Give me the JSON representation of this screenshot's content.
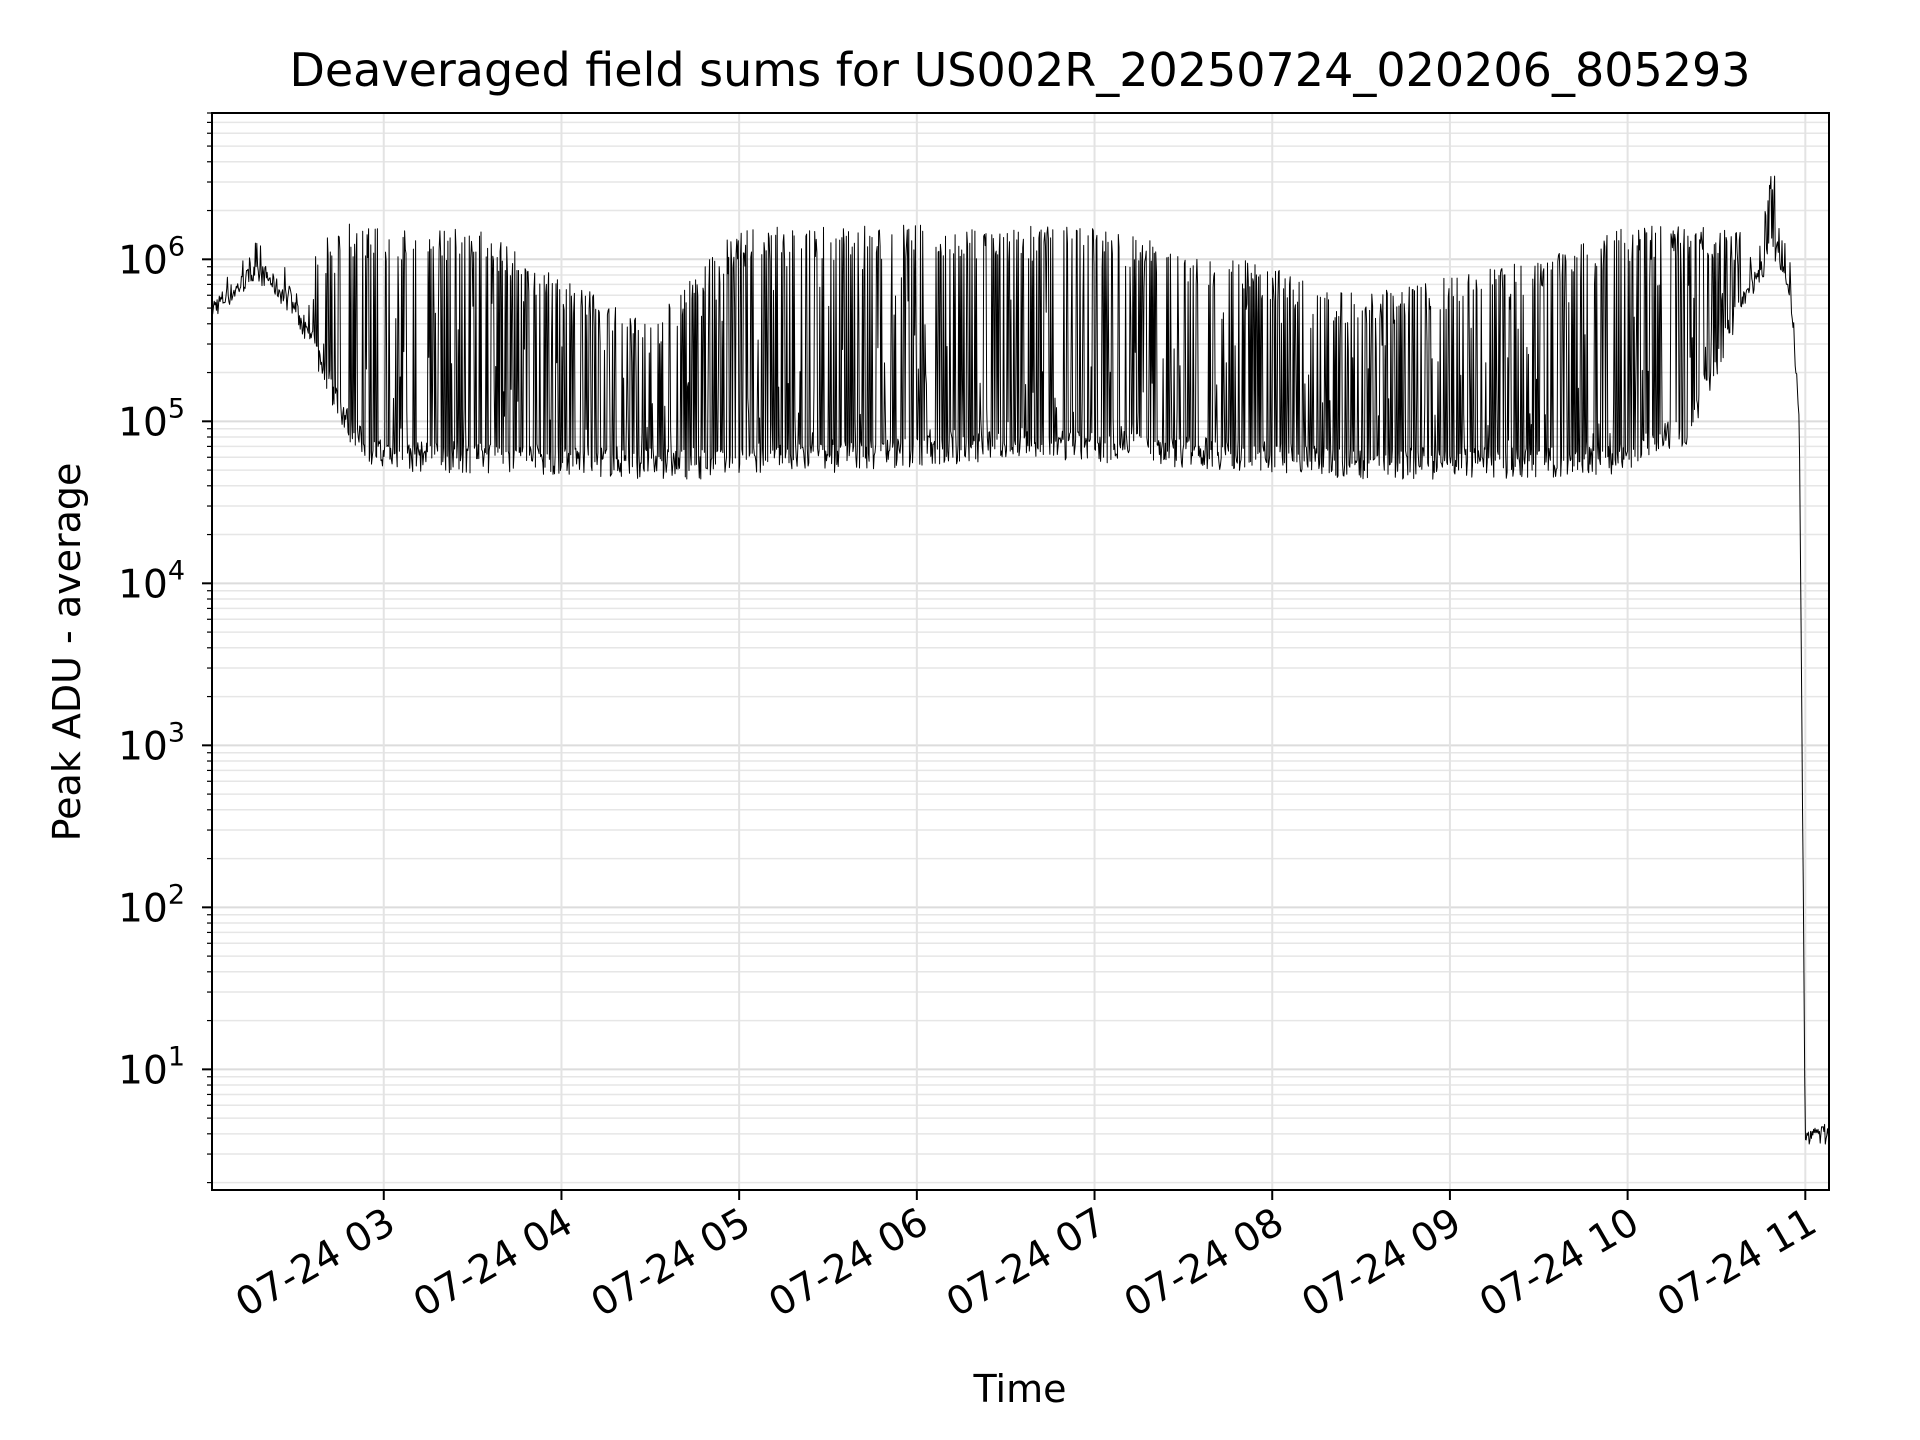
{
  "chart_data": {
    "type": "line",
    "title": "Deaveraged field sums for US002R_20250724_020206_805293",
    "xlabel": "Time",
    "ylabel": "Peak ADU - average",
    "yscale": "log",
    "grid": true,
    "xlim": [
      "07-24 02:02",
      "07-24 11:08"
    ],
    "ylim": [
      1.8,
      8000000
    ],
    "x_ticks": [
      "07-24 03",
      "07-24 04",
      "07-24 05",
      "07-24 06",
      "07-24 07",
      "07-24 08",
      "07-24 09",
      "07-24 10",
      "07-24 11"
    ],
    "y_ticks": [
      {
        "base": "10",
        "exp": "1",
        "value": 10
      },
      {
        "base": "10",
        "exp": "2",
        "value": 100
      },
      {
        "base": "10",
        "exp": "3",
        "value": 1000
      },
      {
        "base": "10",
        "exp": "4",
        "value": 10000
      },
      {
        "base": "10",
        "exp": "5",
        "value": 100000
      },
      {
        "base": "10",
        "exp": "6",
        "value": 1000000
      }
    ],
    "series": [
      {
        "color": "#000000",
        "line_width": 1,
        "points": [
          {
            "time": "07-24 02:02",
            "baseline": 500000,
            "peak": 650000
          },
          {
            "time": "07-24 02:10",
            "baseline": 650000,
            "peak": 900000
          },
          {
            "time": "07-24 02:15",
            "baseline": 800000,
            "peak": 1400000
          },
          {
            "time": "07-24 02:20",
            "baseline": 800000,
            "peak": 1300000
          },
          {
            "time": "07-24 02:30",
            "baseline": 500000,
            "peak": 700000
          },
          {
            "time": "07-24 02:40",
            "baseline": 200000,
            "peak": 1600000
          },
          {
            "time": "07-24 02:50",
            "baseline": 80000,
            "peak": 1700000
          },
          {
            "time": "07-24 03:00",
            "baseline": 60000,
            "peak": 1600000
          },
          {
            "time": "07-24 03:30",
            "baseline": 60000,
            "peak": 1600000
          },
          {
            "time": "07-24 04:00",
            "baseline": 58000,
            "peak": 800000
          },
          {
            "time": "07-24 04:30",
            "baseline": 55000,
            "peak": 400000
          },
          {
            "time": "07-24 05:00",
            "baseline": 55000,
            "peak": 1600000
          },
          {
            "time": "07-24 05:30",
            "baseline": 60000,
            "peak": 1600000
          },
          {
            "time": "07-24 06:00",
            "baseline": 65000,
            "peak": 1700000
          },
          {
            "time": "07-24 06:30",
            "baseline": 70000,
            "peak": 1600000
          },
          {
            "time": "07-24 07:00",
            "baseline": 70000,
            "peak": 1600000
          },
          {
            "time": "07-24 07:30",
            "baseline": 65000,
            "peak": 1200000
          },
          {
            "time": "07-24 08:00",
            "baseline": 60000,
            "peak": 900000
          },
          {
            "time": "07-24 08:30",
            "baseline": 55000,
            "peak": 600000
          },
          {
            "time": "07-24 09:00",
            "baseline": 55000,
            "peak": 800000
          },
          {
            "time": "07-24 09:30",
            "baseline": 55000,
            "peak": 1000000
          },
          {
            "time": "07-24 10:00",
            "baseline": 60000,
            "peak": 1600000
          },
          {
            "time": "07-24 10:20",
            "baseline": 90000,
            "peak": 1600000
          },
          {
            "time": "07-24 10:40",
            "baseline": 600000,
            "peak": 1500000
          },
          {
            "time": "07-24 10:50",
            "baseline": 1200000,
            "peak": 4000000
          },
          {
            "time": "07-24 10:55",
            "baseline": 600000,
            "peak": 900000
          },
          {
            "time": "07-24 10:58",
            "baseline": 100000,
            "peak": 100000
          },
          {
            "time": "07-24 11:00",
            "baseline": 4,
            "peak": 4
          },
          {
            "time": "07-24 11:08",
            "baseline": 4,
            "peak": 4.5
          }
        ]
      }
    ]
  }
}
